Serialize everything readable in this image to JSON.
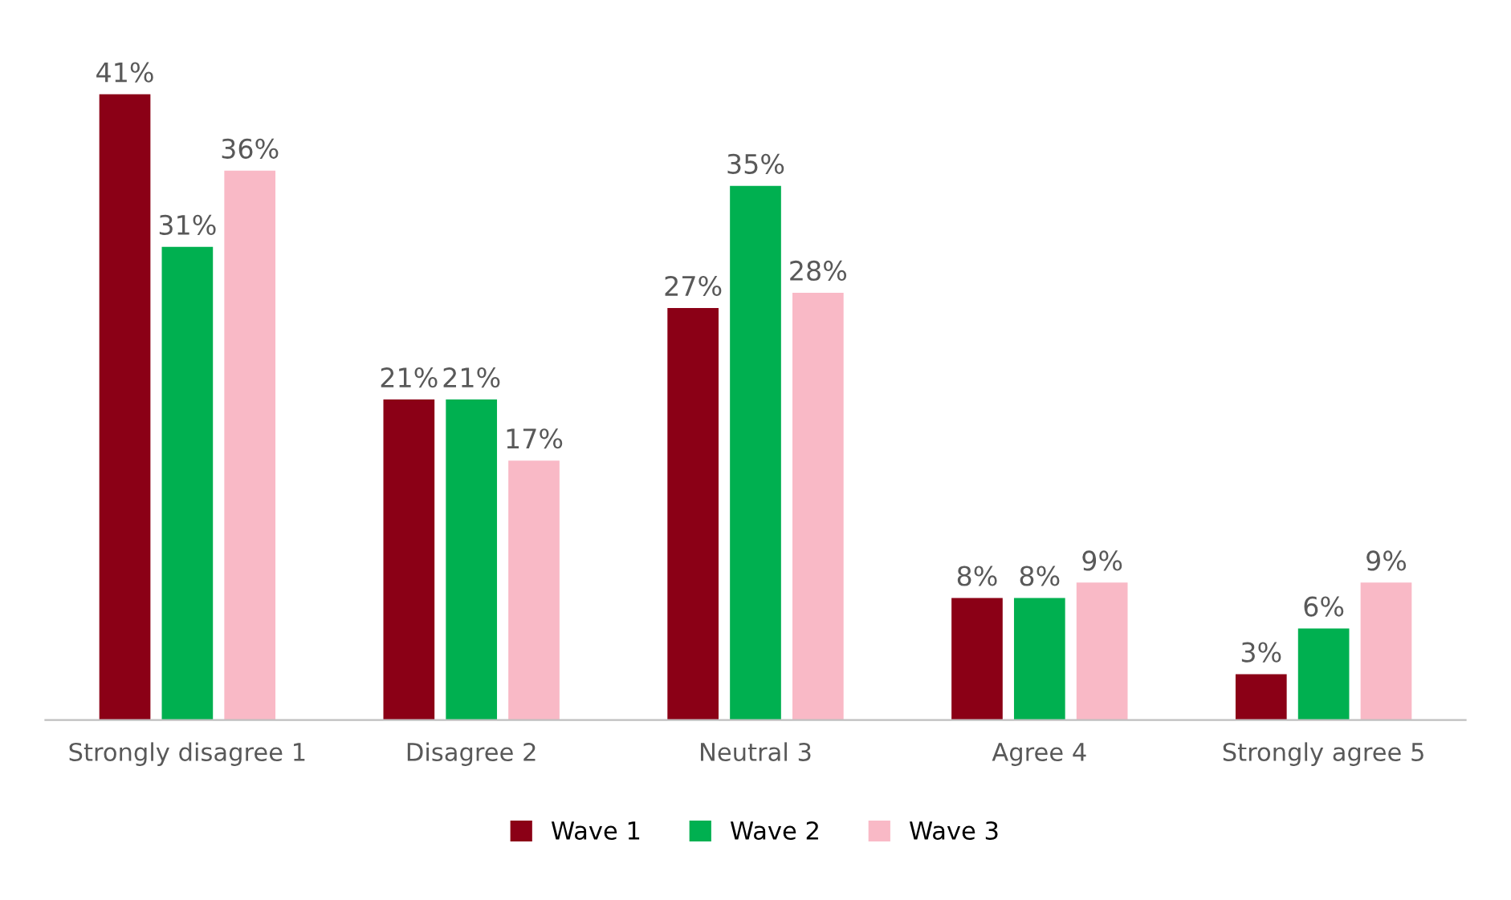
{
  "chart_data": {
    "type": "bar",
    "categories": [
      "Strongly disagree 1",
      "Disagree 2",
      "Neutral 3",
      "Agree 4",
      "Strongly agree 5"
    ],
    "series": [
      {
        "name": "Wave 1",
        "color": "#8b0016",
        "values": [
          41,
          21,
          27,
          8,
          3
        ],
        "value_labels": [
          "41%",
          "21%",
          "27%",
          "8%",
          "3%"
        ]
      },
      {
        "name": "Wave 2",
        "color": "#00b050",
        "values": [
          31,
          21,
          35,
          8,
          6
        ],
        "value_labels": [
          "31%",
          "21%",
          "35%",
          "8%",
          "6%"
        ]
      },
      {
        "name": "Wave 3",
        "color": "#f9b9c6",
        "values": [
          36,
          17,
          28,
          9,
          9
        ],
        "value_labels": [
          "36%",
          "17%",
          "28%",
          "9%",
          "9%"
        ]
      }
    ],
    "legend": "bottom",
    "grid": false
  }
}
